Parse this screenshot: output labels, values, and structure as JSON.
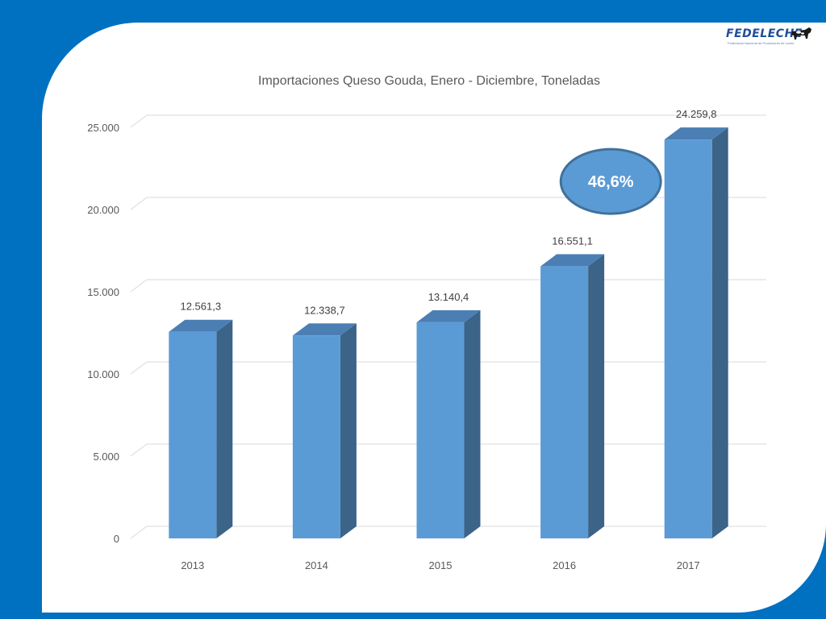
{
  "logo": {
    "name": "FEDELECHE",
    "tagline": "Federación Nacional de Productores de Leche"
  },
  "colors": {
    "background": "#0070c0",
    "bar_front": "#5b9bd5",
    "bar_side": "#3c6388",
    "bar_top": "#4b7fb4",
    "callout_fill": "#5b9bd5",
    "callout_border": "#41719c"
  },
  "chart_data": {
    "type": "bar",
    "title": "Importaciones Queso Gouda, Enero - Diciembre, Toneladas",
    "categories": [
      "2013",
      "2014",
      "2015",
      "2016",
      "2017"
    ],
    "values": [
      12561.3,
      12338.7,
      13140.4,
      16551.1,
      24259.8
    ],
    "data_labels": [
      "12.561,3",
      "12.338,7",
      "13.140,4",
      "16.551,1",
      "24.259,8"
    ],
    "yticks": [
      0,
      5000,
      10000,
      15000,
      20000,
      25000
    ],
    "ytick_labels": [
      "0",
      "5.000",
      "10.000",
      "15.000",
      "20.000",
      "25.000"
    ],
    "ylim": [
      0,
      25000
    ],
    "grid": true,
    "style": "3d-column",
    "annotation": {
      "text": "46,6%"
    }
  }
}
